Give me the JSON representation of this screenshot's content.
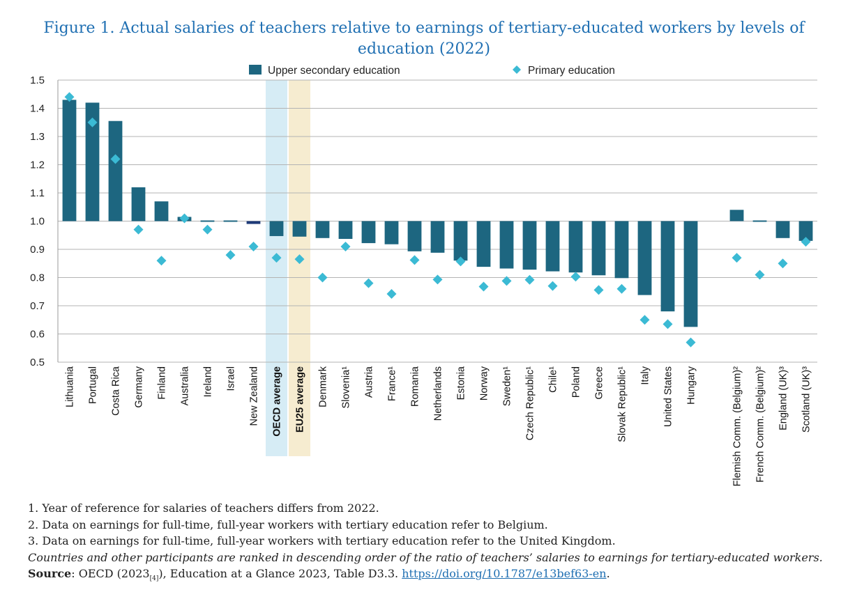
{
  "title": "Figure 1. Actual salaries of teachers relative to earnings of tertiary-educated workers by levels of education (2022)",
  "colors": {
    "bar": "#1d6680",
    "bar_nz": "#1e3a78",
    "marker": "#3bbad4",
    "oecd_band": "#d6ecf5",
    "eu_band": "#f6ecd0",
    "grid": "#b3b3b3",
    "title": "#1f6fb2"
  },
  "chart_data": {
    "type": "bar",
    "ylim": [
      0.5,
      1.5
    ],
    "yticks": [
      "0.5",
      "0.6",
      "0.7",
      "0.8",
      "0.9",
      "1.0",
      "1.1",
      "1.2",
      "1.3",
      "1.4",
      "1.5"
    ],
    "baseline": 1.0,
    "grid": true,
    "legend_position": "top",
    "categories": [
      "Lithuania",
      "Portugal",
      "Costa Rica",
      "Germany",
      "Finland",
      "Australia",
      "Ireland",
      "Israel",
      "New Zealand",
      "OECD average",
      "EU25 average",
      "Denmark",
      "Slovenia¹",
      "Austria",
      "France¹",
      "Romania",
      "Netherlands",
      "Estonia",
      "Norway",
      "Sweden¹",
      "Czech Republic¹",
      "Chile¹",
      "Poland",
      "Greece",
      "Slovak Republic¹",
      "Italy",
      "United States",
      "Hungary",
      "",
      "Flemish Comm. (Belgium)²",
      "French Comm. (Belgium)²",
      "England (UK)³",
      "Scotland (UK)³"
    ],
    "highlighted": [
      "OECD average",
      "EU25 average"
    ],
    "series": [
      {
        "name": "Upper secondary education",
        "marker": "bar",
        "values": [
          1.43,
          1.42,
          1.355,
          1.12,
          1.07,
          1.015,
          1.003,
          0.998,
          0.99,
          0.947,
          0.945,
          0.94,
          0.937,
          0.922,
          0.918,
          0.893,
          0.888,
          0.86,
          0.838,
          0.832,
          0.828,
          0.822,
          0.818,
          0.808,
          0.798,
          0.738,
          0.68,
          0.625,
          null,
          1.04,
          0.998,
          0.94,
          0.93
        ]
      },
      {
        "name": "Primary education",
        "marker": "diamond",
        "values": [
          1.44,
          1.35,
          1.22,
          0.97,
          0.86,
          1.01,
          0.97,
          0.88,
          0.91,
          0.87,
          0.865,
          0.8,
          0.91,
          0.78,
          0.742,
          0.862,
          0.793,
          0.857,
          0.768,
          0.788,
          0.792,
          0.77,
          0.803,
          0.756,
          0.76,
          0.65,
          0.635,
          0.57,
          null,
          0.87,
          0.81,
          0.85,
          0.927
        ]
      }
    ]
  },
  "notes": {
    "note1": "1. Year of reference for salaries of teachers differs from 2022.",
    "note2": "2. Data on earnings for full-time, full-year workers with tertiary education refer to Belgium.",
    "note3": "3. Data on earnings for full-time, full-year workers with tertiary education refer to the United Kingdom.",
    "note4": "Countries and other participants are ranked in descending order of the ratio of teachers’ salaries to earnings for tertiary-educated workers.",
    "source_label": "Source",
    "source_text_a": ": OECD (2023",
    "source_sub": "[4]",
    "source_text_b": "), Education at a Glance 2023, Table D3.3. ",
    "source_link": "https://doi.org/10.1787/e13bef63-en",
    "source_end": "."
  }
}
